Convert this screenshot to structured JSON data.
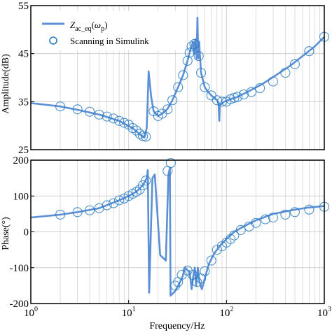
{
  "chart_data": [
    {
      "type": "line",
      "xscale": "log",
      "xlim": [
        1,
        1000
      ],
      "ylim": [
        25,
        55
      ],
      "yticks": [
        25,
        35,
        45,
        55
      ],
      "ylabel": "Amplitude(dB)",
      "xlabel": "",
      "grid": true,
      "legend_position": "top-left",
      "series": [
        {
          "name": "Z_ac_eq(ω_p)",
          "legend_main": "Z",
          "legend_sub1": "ac_eq",
          "legend_open": "(",
          "legend_omega": "ω",
          "legend_sub2": "p",
          "legend_close": ")",
          "style": "line",
          "color": "#5b8fd6",
          "x": [
            1,
            2,
            3,
            5,
            8,
            11,
            13,
            14.5,
            15.3,
            15.6,
            16,
            17,
            18,
            20,
            22,
            25,
            28,
            32,
            36,
            40,
            43,
            45.5,
            46.5,
            48,
            49.5,
            50.5,
            51.5,
            52.5,
            55,
            60,
            65,
            70,
            75,
            80,
            83,
            84.5,
            85.5,
            88,
            95,
            110,
            130,
            170,
            230,
            320,
            450,
            600,
            800,
            1000
          ],
          "y": [
            34.7,
            34.0,
            33.3,
            32.3,
            31.0,
            29.5,
            28.2,
            27.5,
            29.5,
            34.0,
            41.3,
            36.0,
            33.0,
            32.0,
            32.5,
            33.5,
            35.3,
            38.0,
            40.5,
            43.5,
            46.0,
            47.5,
            45.0,
            48.0,
            44.0,
            52.5,
            44.0,
            47.5,
            41.0,
            38.0,
            37.0,
            36.3,
            35.8,
            35.3,
            34.8,
            31.0,
            34.5,
            34.5,
            35.0,
            35.5,
            36.0,
            37.2,
            38.6,
            40.5,
            42.5,
            44.5,
            46.5,
            48.5
          ]
        },
        {
          "name": "Scanning in Simulink",
          "style": "marker",
          "color": "#2a7ec4",
          "x": [
            2,
            3,
            4,
            5,
            6,
            7,
            8,
            9,
            10,
            11,
            12,
            13,
            14,
            15,
            18,
            20,
            22,
            25,
            28,
            32,
            36,
            40,
            42,
            44,
            47,
            52,
            55,
            60,
            70,
            80,
            90,
            100,
            110,
            120,
            130,
            150,
            180,
            220,
            300,
            400,
            500,
            700,
            1000
          ],
          "y": [
            34.0,
            33.4,
            32.9,
            32.3,
            31.9,
            31.5,
            31.0,
            30.6,
            30.2,
            29.5,
            29.0,
            28.3,
            27.8,
            27.7,
            33.0,
            32.0,
            32.5,
            33.4,
            35.3,
            38.0,
            40.5,
            43.5,
            45.2,
            46.5,
            47.0,
            44.5,
            41.0,
            38.0,
            36.3,
            35.3,
            35.0,
            35.0,
            35.5,
            35.8,
            36.0,
            36.5,
            37.0,
            37.8,
            39.2,
            41.0,
            42.8,
            45.5,
            48.5
          ]
        }
      ]
    },
    {
      "type": "line",
      "xscale": "log",
      "xlim": [
        1,
        1000
      ],
      "ylim": [
        -200,
        200
      ],
      "yticks": [
        -200,
        -100,
        0,
        100,
        200
      ],
      "xticks": [
        1,
        10,
        100,
        1000
      ],
      "ylabel": "Phase(°)",
      "xlabel": "Frequency/Hz",
      "grid": true,
      "series": [
        {
          "name": "",
          "style": "line",
          "color": "#5b8fd6",
          "x": [
            1,
            2,
            3,
            5,
            8,
            10,
            12,
            14,
            15.3,
            15.7,
            16.2,
            17.5,
            18.5,
            21,
            24,
            25.5,
            26.4,
            26.8,
            30,
            35,
            38,
            40,
            42,
            44,
            46,
            47.5,
            49,
            51,
            53,
            56,
            60,
            66,
            75,
            85,
            100,
            120,
            150,
            200,
            300,
            500,
            700,
            1000
          ],
          "y": [
            40,
            48,
            55,
            66,
            88,
            100,
            112,
            130,
            150,
            172,
            -170,
            150,
            160,
            -65,
            -80,
            160,
            178,
            -178,
            -165,
            -130,
            -100,
            -108,
            -110,
            -160,
            -120,
            -100,
            -150,
            -100,
            -140,
            -160,
            -130,
            -90,
            -60,
            -40,
            -20,
            0,
            15,
            32,
            50,
            62,
            68,
            72
          ]
        },
        {
          "name": "Scanning in Simulink",
          "style": "marker",
          "color": "#2a7ec4",
          "x": [
            2,
            3,
            4,
            5,
            6,
            7,
            8,
            9,
            10,
            11,
            12,
            13,
            14,
            15,
            25,
            27,
            30,
            32,
            35,
            40,
            45,
            50,
            55,
            60,
            70,
            80,
            90,
            100,
            110,
            120,
            140,
            170,
            200,
            250,
            300,
            400,
            500,
            700,
            1000
          ],
          "y": [
            48,
            55,
            60,
            66,
            74,
            80,
            88,
            93,
            100,
            106,
            112,
            118,
            130,
            143,
            170,
            192,
            -150,
            -140,
            -120,
            -108,
            -120,
            -140,
            -130,
            -110,
            -80,
            -50,
            -40,
            -30,
            -20,
            -10,
            5,
            15,
            25,
            35,
            40,
            48,
            55,
            62,
            70
          ]
        }
      ]
    }
  ],
  "top_panel": {
    "ytick_labels": [
      "25",
      "35",
      "45",
      "55"
    ],
    "ylabel": "Amplitude(dB)"
  },
  "bottom_panel": {
    "ytick_labels": [
      "-200",
      "-100",
      "0",
      "100",
      "200"
    ],
    "ylabel": "Phase(°)",
    "xlabel": "Frequency/Hz",
    "xtick_base": "10",
    "xtick_exps": [
      "0",
      "1",
      "2",
      "3"
    ]
  },
  "legend": {
    "main": "Z",
    "sub1": "ac_eq",
    "omega_open": "(",
    "omega": "ω",
    "sub2": "p",
    "omega_close": ")",
    "marker_label": "Scanning in Simulink"
  },
  "colors": {
    "line": "#5b8fd6",
    "marker": "#2a7ec4",
    "grid": "#d0d0d0",
    "frame": "#000000"
  }
}
